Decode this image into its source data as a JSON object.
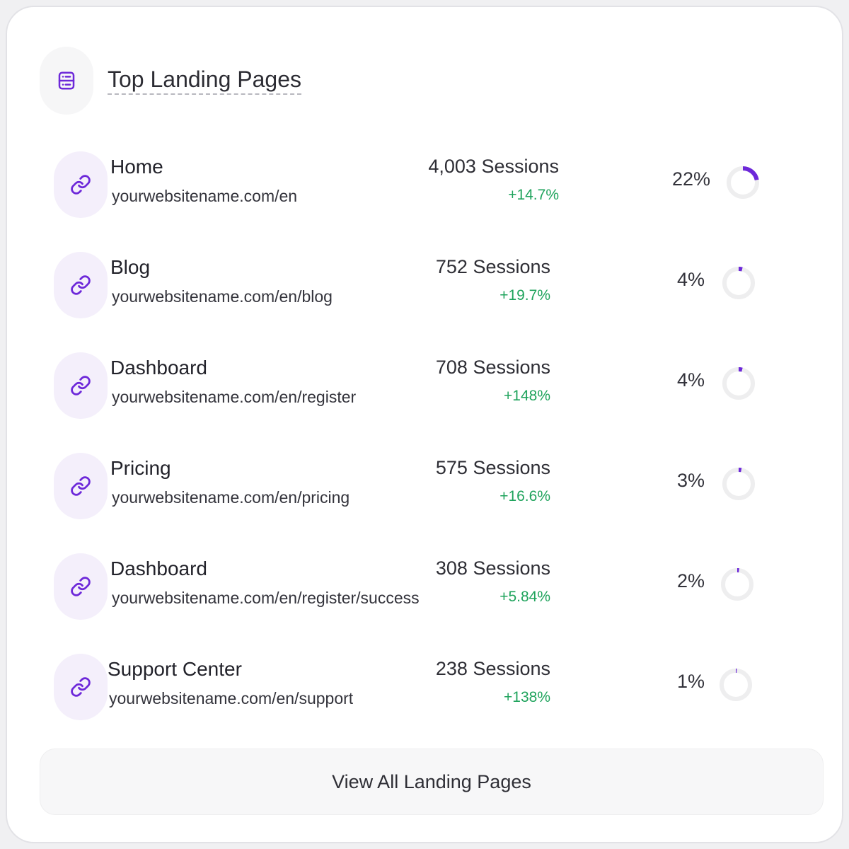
{
  "card": {
    "title": "Top Landing Pages",
    "header_icon": "server-icon"
  },
  "colors": {
    "accent": "#6d28d9",
    "positive": "#1fa35c",
    "ring_track": "#eeeeef",
    "icon_bg": "#f4effb"
  },
  "rows": [
    {
      "name": "Home",
      "url": "yourwebsitename.com/en",
      "sessions": "4,003 Sessions",
      "change": "+14.7%",
      "percent_label": "22%",
      "percent_value": 22,
      "icon": "link-icon"
    },
    {
      "name": "Blog",
      "url": "yourwebsitename.com/en/blog",
      "sessions": "752 Sessions",
      "change": "+19.7%",
      "percent_label": "4%",
      "percent_value": 4,
      "icon": "link-icon"
    },
    {
      "name": "Dashboard",
      "url": "yourwebsitename.com/en/register",
      "sessions": "708 Sessions",
      "change": "+148%",
      "percent_label": "4%",
      "percent_value": 4,
      "icon": "link-icon"
    },
    {
      "name": "Pricing",
      "url": "yourwebsitename.com/en/pricing",
      "sessions": "575 Sessions",
      "change": "+16.6%",
      "percent_label": "3%",
      "percent_value": 3,
      "icon": "link-icon"
    },
    {
      "name": "Dashboard",
      "url": "yourwebsitename.com/en/register/success",
      "sessions": "308 Sessions",
      "change": "+5.84%",
      "percent_label": "2%",
      "percent_value": 2,
      "icon": "link-icon"
    },
    {
      "name": "Support Center",
      "url": "yourwebsitename.com/en/support",
      "sessions": "238 Sessions",
      "change": "+138%",
      "percent_label": "1%",
      "percent_value": 1,
      "icon": "link-icon"
    }
  ],
  "footer": {
    "view_all_label": "View All Landing Pages"
  }
}
